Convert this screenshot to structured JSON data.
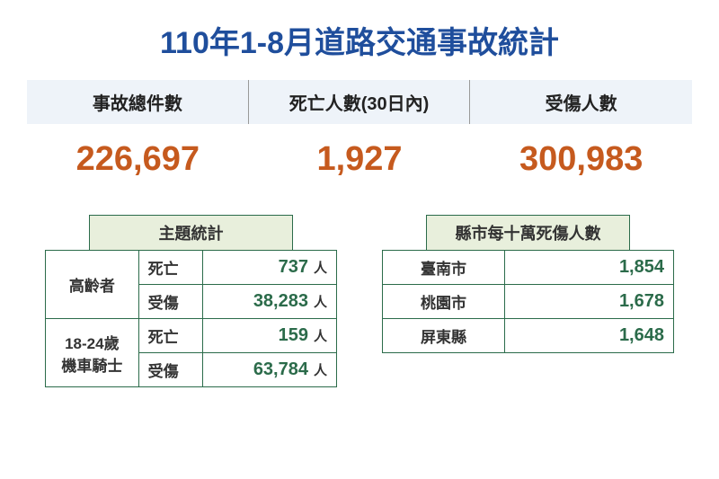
{
  "colors": {
    "title": "#1f4e9c",
    "header_bg": "#eef3f9",
    "stat_label": "#222222",
    "stat_value": "#c65a1e",
    "border_header": "#999999",
    "table_border": "#2b6b4a",
    "table_title_bg": "#e8efdc",
    "row_text": "#333333",
    "num_text": "#2b6b4a"
  },
  "title": "110年1-8月道路交通事故統計",
  "stats": [
    {
      "label": "事故總件數",
      "value": "226,697"
    },
    {
      "label": "死亡人數(30日內)",
      "value": "1,927"
    },
    {
      "label": "受傷人數",
      "value": "300,983"
    }
  ],
  "theme_table": {
    "title": "主題統計",
    "unit": "人",
    "rows": [
      {
        "group": "高齡者",
        "sub": "死亡",
        "value": "737"
      },
      {
        "group": "高齡者",
        "sub": "受傷",
        "value": "38,283"
      },
      {
        "group": "18-24歲\n機車騎士",
        "sub": "死亡",
        "value": "159"
      },
      {
        "group": "18-24歲\n機車騎士",
        "sub": "受傷",
        "value": "63,784"
      }
    ]
  },
  "county_table": {
    "title": "縣市每十萬死傷人數",
    "rows": [
      {
        "county": "臺南市",
        "value": "1,854"
      },
      {
        "county": "桃園市",
        "value": "1,678"
      },
      {
        "county": "屏東縣",
        "value": "1,648"
      }
    ]
  }
}
